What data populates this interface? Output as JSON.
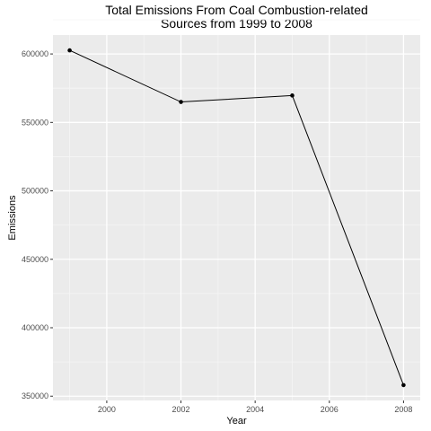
{
  "chart_data": {
    "type": "line",
    "title": "Total Emissions From Coal Combustion-related\nSources from 1999 to 2008",
    "xlabel": "Year",
    "ylabel": "Emissions",
    "x": [
      1999,
      2002,
      2005,
      2008
    ],
    "series": [
      {
        "values": [
          602624,
          564941,
          569655,
          358083
        ]
      }
    ],
    "xlim": [
      1998.55,
      2008.45
    ],
    "ylim": [
      346870,
      613837
    ],
    "xticks": [
      2000,
      2002,
      2004,
      2006,
      2008
    ],
    "yticks": [
      350000,
      400000,
      450000,
      500000,
      550000,
      600000
    ],
    "grid": true,
    "legend": "none",
    "colors": {
      "panel_background": "#ebebeb",
      "grid_major": "#ffffff",
      "grid_minor": "#f5f5f5",
      "line": "#000000",
      "point": "#000000",
      "tick_text": "#4d4d4d",
      "tick_mark": "#333333"
    }
  }
}
